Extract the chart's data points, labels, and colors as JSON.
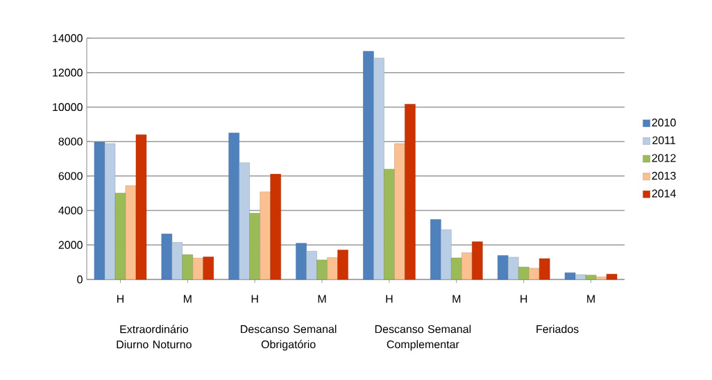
{
  "chart_data": {
    "type": "bar",
    "categories": [
      "H",
      "M",
      "H",
      "M",
      "H",
      "M",
      "H",
      "M"
    ],
    "series": [
      {
        "name": "2010",
        "color": "#4f81bd",
        "values": [
          7970,
          2640,
          8500,
          2100,
          13240,
          3480,
          1390,
          390
        ]
      },
      {
        "name": "2011",
        "color": "#b9cde5",
        "values": [
          7880,
          2150,
          6770,
          1640,
          12840,
          2890,
          1290,
          280
        ]
      },
      {
        "name": "2012",
        "color": "#9bbb59",
        "values": [
          5010,
          1440,
          3840,
          1130,
          6400,
          1250,
          720,
          250
        ]
      },
      {
        "name": "2013",
        "color": "#fac090",
        "values": [
          5440,
          1240,
          5080,
          1270,
          7880,
          1550,
          650,
          150
        ]
      },
      {
        "name": "2014",
        "color": "#cc3300",
        "values": [
          8400,
          1310,
          6110,
          1710,
          10170,
          2190,
          1210,
          310
        ]
      }
    ],
    "annotations": [
      "Extraordinário Diurno Noturno",
      "Descanso Semanal Obrigatório",
      "Descanso Semanal Complementar",
      "Feriados"
    ],
    "ylim": [
      0,
      14000
    ],
    "yticks": [
      0,
      2000,
      4000,
      6000,
      8000,
      10000,
      12000,
      14000
    ],
    "grid": "y",
    "legend": "right"
  }
}
